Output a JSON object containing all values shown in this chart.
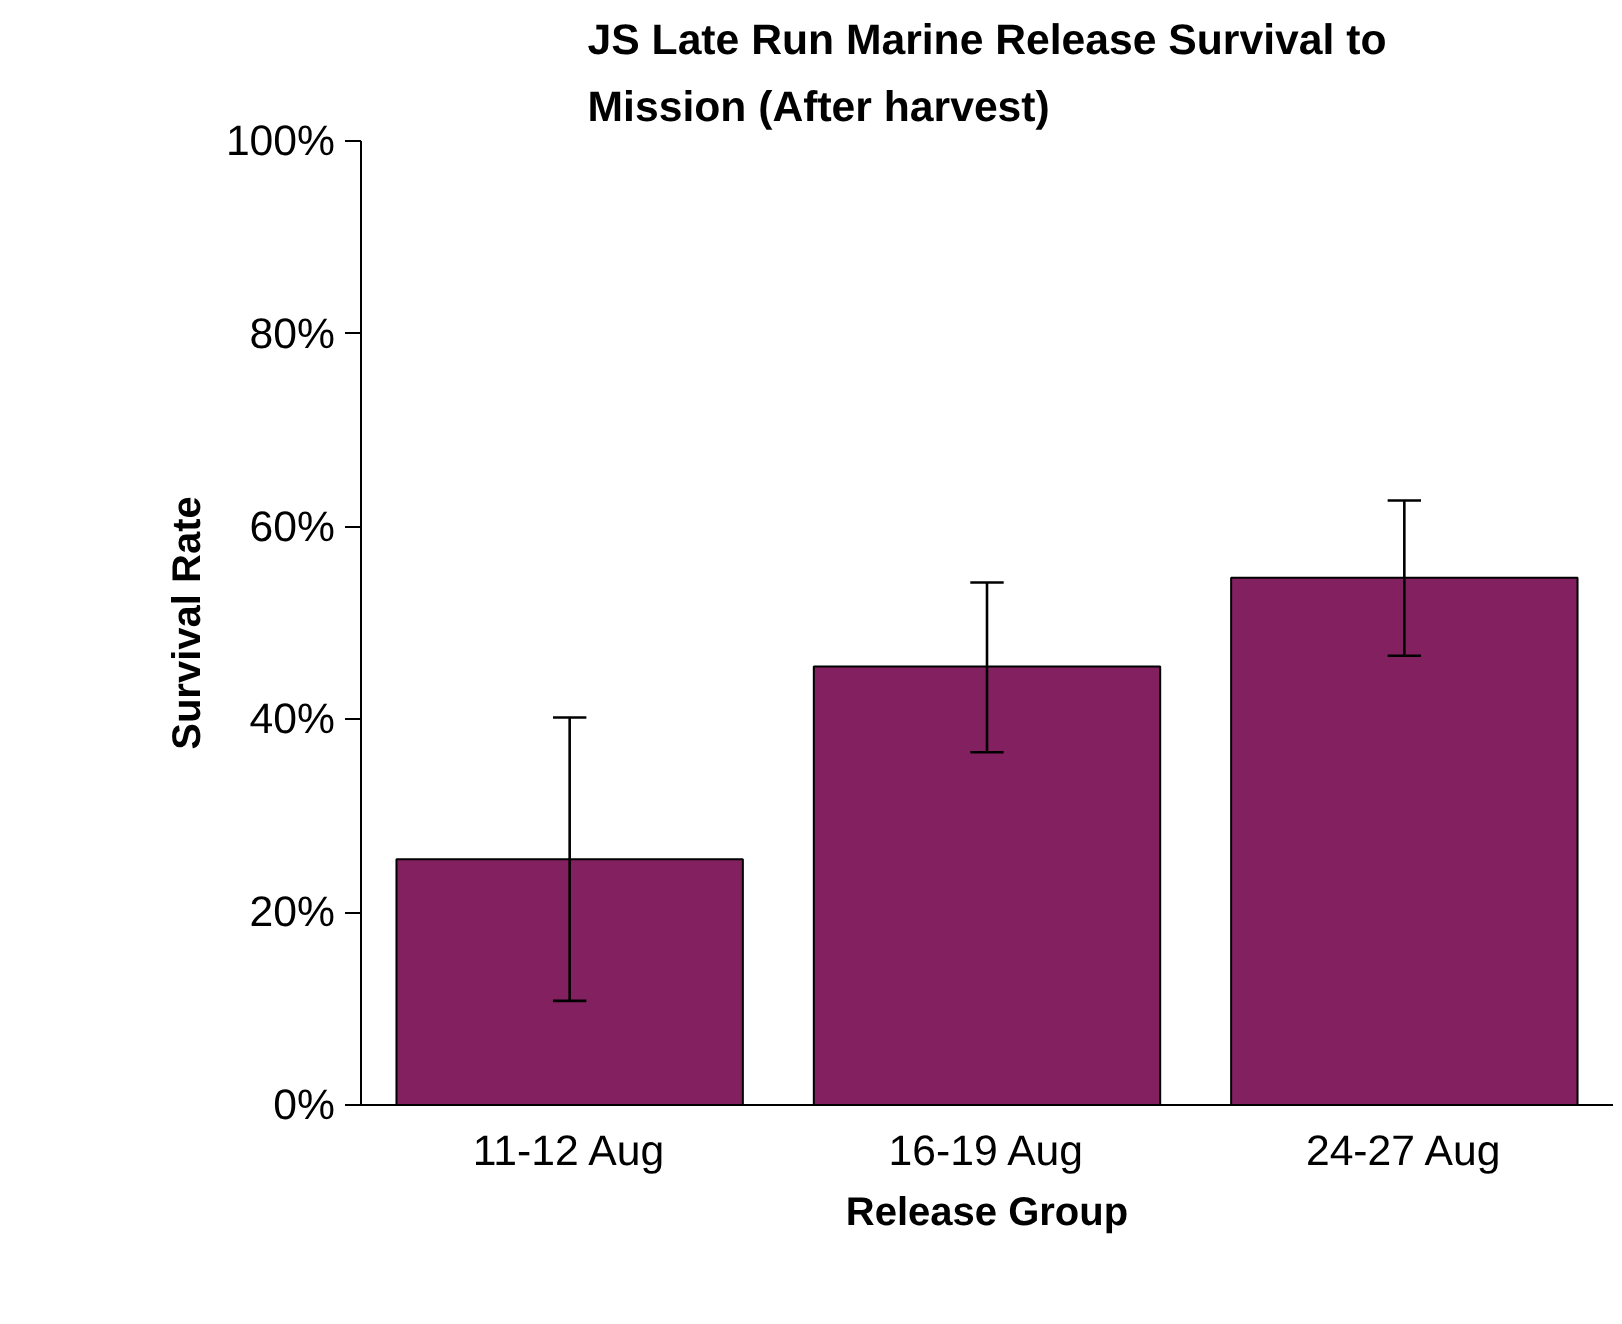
{
  "chart_data": {
    "type": "bar",
    "title": "JS Late Run Marine Release Survival to Mission (After harvest)",
    "xlabel": "Release Group",
    "ylabel": "Survival Rate",
    "categories": [
      "11-12 Aug",
      "16-19 Aug",
      "24-27 Aug"
    ],
    "values": [
      25.5,
      45.5,
      54.7
    ],
    "color": "#832160",
    "errors": [
      [
        10.8,
        40.2
      ],
      [
        36.6,
        54.2
      ],
      [
        46.6,
        62.7
      ]
    ],
    "ylim": [
      0,
      100
    ],
    "yticks": [
      {
        "value": 0,
        "label": "0%"
      },
      {
        "value": 20,
        "label": "20%"
      },
      {
        "value": 40,
        "label": "40%"
      },
      {
        "value": 60,
        "label": "60%"
      },
      {
        "value": 80,
        "label": "80%"
      },
      {
        "value": 100,
        "label": "100%"
      }
    ],
    "grid": false
  }
}
